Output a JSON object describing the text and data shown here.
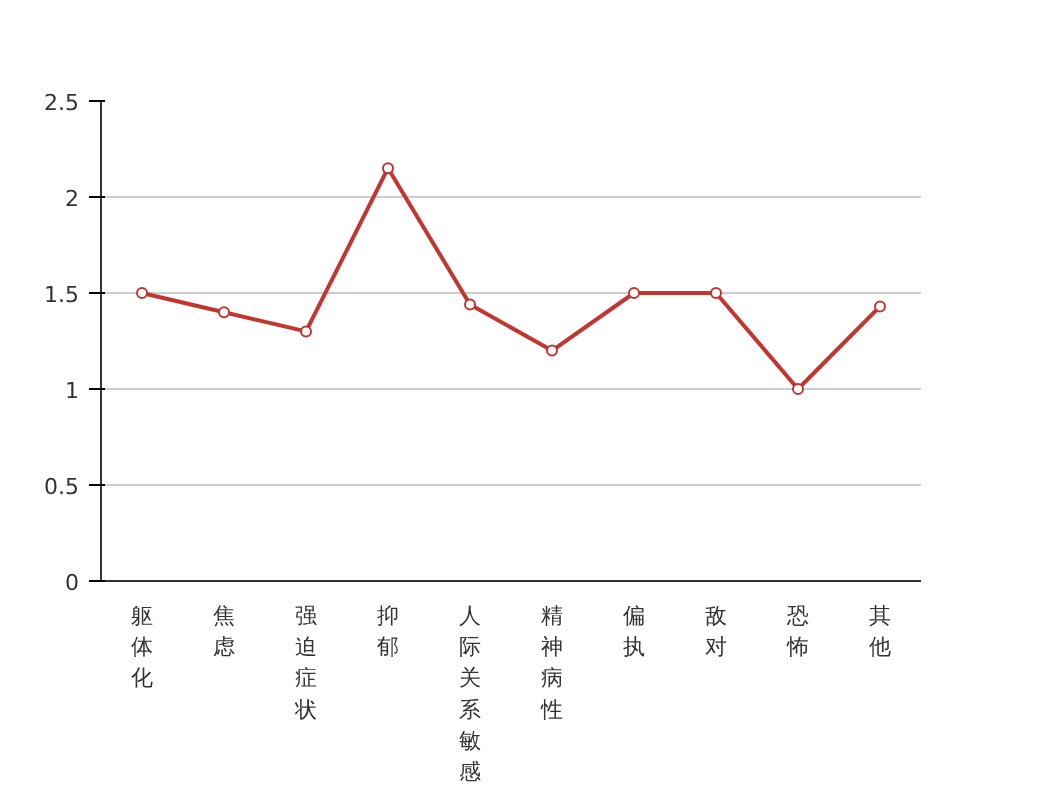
{
  "chart_data": {
    "type": "line",
    "categories": [
      "躯体化",
      "焦虑",
      "强迫症状",
      "抑郁",
      "人际关系敏感",
      "精神病性",
      "偏执",
      "敌对",
      "恐怖",
      "其他"
    ],
    "series": [
      {
        "color": "#c23531",
        "values": [
          1.5,
          1.4,
          1.3,
          2.15,
          1.44,
          1.2,
          1.5,
          1.5,
          1.0,
          1.43
        ]
      }
    ],
    "ylim": [
      0,
      2.5
    ],
    "yticks": [
      0,
      0.5,
      1,
      1.5,
      2,
      2.5
    ],
    "grid": "y",
    "marker": "circle",
    "line_style": "solid"
  }
}
